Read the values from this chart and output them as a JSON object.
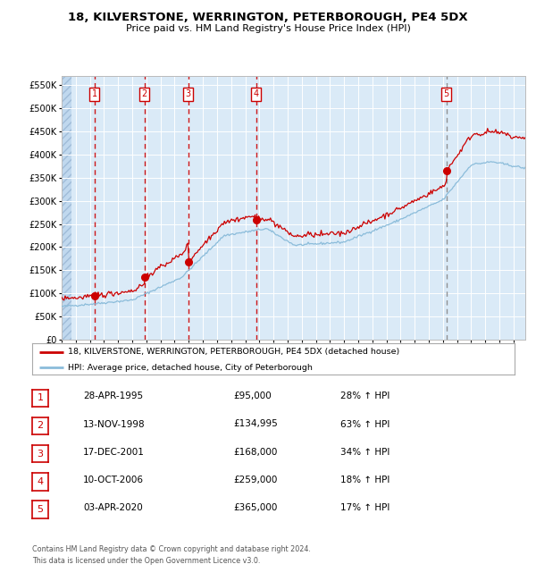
{
  "title": "18, KILVERSTONE, WERRINGTON, PETERBOROUGH, PE4 5DX",
  "subtitle": "Price paid vs. HM Land Registry's House Price Index (HPI)",
  "ylim": [
    0,
    570000
  ],
  "yticks": [
    0,
    50000,
    100000,
    150000,
    200000,
    250000,
    300000,
    350000,
    400000,
    450000,
    500000,
    550000
  ],
  "xlim_start": 1993.0,
  "xlim_end": 2025.83,
  "background_color": "#daeaf7",
  "grid_color": "#ffffff",
  "sale_dates": [
    1995.32,
    1998.87,
    2001.96,
    2006.78,
    2020.25
  ],
  "sale_prices": [
    95000,
    134995,
    168000,
    259000,
    365000
  ],
  "sale_labels": [
    "1",
    "2",
    "3",
    "4",
    "5"
  ],
  "legend_line1": "18, KILVERSTONE, WERRINGTON, PETERBOROUGH, PE4 5DX (detached house)",
  "legend_line2": "HPI: Average price, detached house, City of Peterborough",
  "table_rows": [
    {
      "num": "1",
      "date": "28-APR-1995",
      "price": "£95,000",
      "pct": "28% ↑ HPI"
    },
    {
      "num": "2",
      "date": "13-NOV-1998",
      "price": "£134,995",
      "pct": "63% ↑ HPI"
    },
    {
      "num": "3",
      "date": "17-DEC-2001",
      "price": "£168,000",
      "pct": "34% ↑ HPI"
    },
    {
      "num": "4",
      "date": "10-OCT-2006",
      "price": "£259,000",
      "pct": "18% ↑ HPI"
    },
    {
      "num": "5",
      "date": "03-APR-2020",
      "price": "£365,000",
      "pct": "17% ↑ HPI"
    }
  ],
  "footnote1": "Contains HM Land Registry data © Crown copyright and database right 2024.",
  "footnote2": "This data is licensed under the Open Government Licence v3.0.",
  "red_line_color": "#cc0000",
  "blue_line_color": "#8bbcda"
}
